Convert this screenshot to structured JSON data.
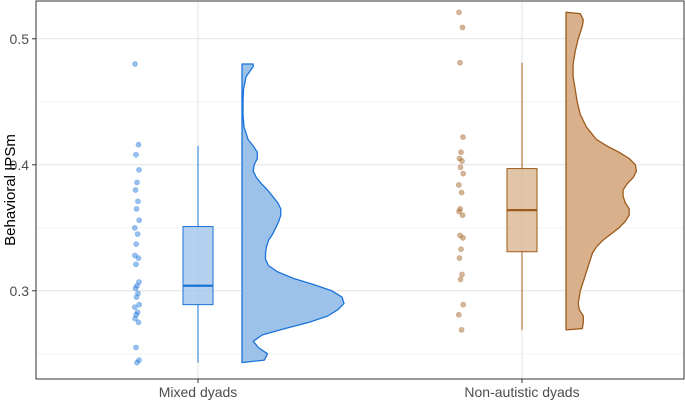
{
  "chart_data": {
    "type": "raincloud",
    "title": "",
    "xlabel": "",
    "ylabel": "Behavioral IPSm",
    "ylim": [
      0.23,
      0.53
    ],
    "yticks": [
      0.3,
      0.4,
      0.5
    ],
    "ytick_labels": [
      "0.3",
      "0.4",
      "0.5"
    ],
    "grid": true,
    "legend": "none",
    "categories": [
      "Mixed dyads",
      "Non-autistic dyads"
    ],
    "series": [
      {
        "category": "Mixed dyads",
        "color": "#1a73d9",
        "fill": "#9dc2ea",
        "points": [
          0.48,
          0.416,
          0.408,
          0.396,
          0.386,
          0.38,
          0.371,
          0.365,
          0.356,
          0.35,
          0.345,
          0.337,
          0.328,
          0.326,
          0.321,
          0.307,
          0.304,
          0.302,
          0.298,
          0.295,
          0.289,
          0.287,
          0.283,
          0.281,
          0.278,
          0.275,
          0.255,
          0.245,
          0.243
        ],
        "box": {
          "min": 0.243,
          "q1": 0.289,
          "median": 0.304,
          "q3": 0.351,
          "max": 0.415
        },
        "density": [
          [
            0.243,
            0.0
          ],
          [
            0.245,
            0.22
          ],
          [
            0.25,
            0.25
          ],
          [
            0.255,
            0.16
          ],
          [
            0.26,
            0.11
          ],
          [
            0.265,
            0.2
          ],
          [
            0.27,
            0.42
          ],
          [
            0.275,
            0.66
          ],
          [
            0.28,
            0.84
          ],
          [
            0.285,
            0.94
          ],
          [
            0.29,
            1.0
          ],
          [
            0.295,
            0.98
          ],
          [
            0.3,
            0.88
          ],
          [
            0.305,
            0.7
          ],
          [
            0.31,
            0.5
          ],
          [
            0.315,
            0.35
          ],
          [
            0.32,
            0.26
          ],
          [
            0.325,
            0.23
          ],
          [
            0.33,
            0.23
          ],
          [
            0.335,
            0.24
          ],
          [
            0.34,
            0.26
          ],
          [
            0.345,
            0.3
          ],
          [
            0.35,
            0.33
          ],
          [
            0.355,
            0.36
          ],
          [
            0.36,
            0.38
          ],
          [
            0.365,
            0.38
          ],
          [
            0.37,
            0.35
          ],
          [
            0.375,
            0.3
          ],
          [
            0.38,
            0.25
          ],
          [
            0.385,
            0.19
          ],
          [
            0.39,
            0.14
          ],
          [
            0.395,
            0.11
          ],
          [
            0.4,
            0.12
          ],
          [
            0.405,
            0.15
          ],
          [
            0.41,
            0.15
          ],
          [
            0.415,
            0.11
          ],
          [
            0.42,
            0.06
          ],
          [
            0.425,
            0.04
          ],
          [
            0.43,
            0.02
          ],
          [
            0.44,
            0.01
          ],
          [
            0.45,
            0.01
          ],
          [
            0.46,
            0.015
          ],
          [
            0.47,
            0.04
          ],
          [
            0.478,
            0.11
          ],
          [
            0.48,
            0.11
          ]
        ]
      },
      {
        "category": "Non-autistic dyads",
        "color": "#9e5a1a",
        "fill": "#d8b08b",
        "points": [
          0.521,
          0.509,
          0.481,
          0.422,
          0.41,
          0.405,
          0.403,
          0.398,
          0.393,
          0.384,
          0.378,
          0.365,
          0.363,
          0.36,
          0.344,
          0.342,
          0.333,
          0.326,
          0.313,
          0.309,
          0.289,
          0.281,
          0.269
        ],
        "box": {
          "min": 0.269,
          "q1": 0.331,
          "median": 0.364,
          "q3": 0.397,
          "max": 0.481
        },
        "density": [
          [
            0.269,
            0.0
          ],
          [
            0.27,
            0.16
          ],
          [
            0.275,
            0.17
          ],
          [
            0.28,
            0.17
          ],
          [
            0.285,
            0.13
          ],
          [
            0.29,
            0.12
          ],
          [
            0.3,
            0.14
          ],
          [
            0.31,
            0.18
          ],
          [
            0.32,
            0.22
          ],
          [
            0.33,
            0.26
          ],
          [
            0.335,
            0.3
          ],
          [
            0.34,
            0.36
          ],
          [
            0.345,
            0.44
          ],
          [
            0.35,
            0.52
          ],
          [
            0.355,
            0.58
          ],
          [
            0.36,
            0.62
          ],
          [
            0.365,
            0.62
          ],
          [
            0.37,
            0.58
          ],
          [
            0.375,
            0.56
          ],
          [
            0.38,
            0.56
          ],
          [
            0.385,
            0.6
          ],
          [
            0.39,
            0.66
          ],
          [
            0.395,
            0.69
          ],
          [
            0.4,
            0.68
          ],
          [
            0.405,
            0.62
          ],
          [
            0.41,
            0.52
          ],
          [
            0.415,
            0.4
          ],
          [
            0.42,
            0.3
          ],
          [
            0.43,
            0.2
          ],
          [
            0.44,
            0.14
          ],
          [
            0.45,
            0.11
          ],
          [
            0.46,
            0.09
          ],
          [
            0.47,
            0.07
          ],
          [
            0.48,
            0.07
          ],
          [
            0.49,
            0.09
          ],
          [
            0.5,
            0.12
          ],
          [
            0.505,
            0.14
          ],
          [
            0.51,
            0.16
          ],
          [
            0.515,
            0.17
          ],
          [
            0.52,
            0.14
          ],
          [
            0.521,
            0.0
          ]
        ]
      }
    ]
  }
}
